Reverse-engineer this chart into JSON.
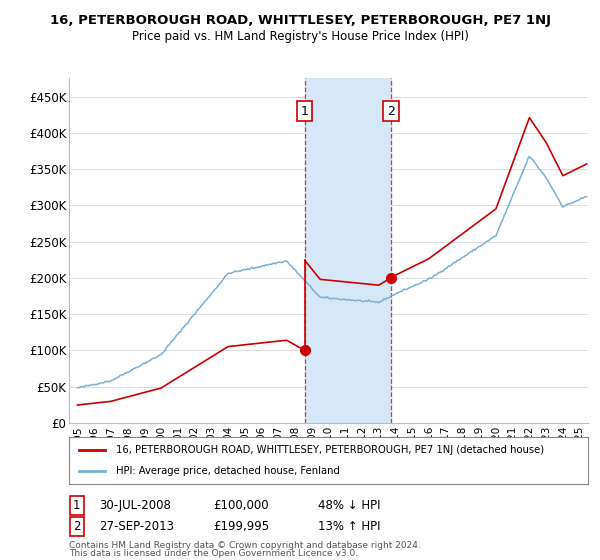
{
  "title": "16, PETERBOROUGH ROAD, WHITTLESEY, PETERBOROUGH, PE7 1NJ",
  "subtitle": "Price paid vs. HM Land Registry's House Price Index (HPI)",
  "ylim": [
    0,
    475000
  ],
  "yticks": [
    0,
    50000,
    100000,
    150000,
    200000,
    250000,
    300000,
    350000,
    400000,
    450000
  ],
  "ytick_labels": [
    "£0",
    "£50K",
    "£100K",
    "£150K",
    "£200K",
    "£250K",
    "£300K",
    "£350K",
    "£400K",
    "£450K"
  ],
  "xlim_start": 1994.5,
  "xlim_end": 2025.5,
  "sale1_date": 2008.58,
  "sale1_price": 100000,
  "sale2_date": 2013.74,
  "sale2_price": 199995,
  "red_line_color": "#cc0000",
  "blue_line_color": "#7bafd4",
  "shade_color": "#d6e8f7",
  "marker_color": "#cc0000",
  "legend_line1": "16, PETERBOROUGH ROAD, WHITTLESEY, PETERBOROUGH, PE7 1NJ (detached house)",
  "legend_line2": "HPI: Average price, detached house, Fenland",
  "sale1_row": "30-JUL-2008",
  "sale1_price_str": "£100,000",
  "sale1_hpi": "48% ↓ HPI",
  "sale2_row": "27-SEP-2013",
  "sale2_price_str": "£199,995",
  "sale2_hpi": "13% ↑ HPI",
  "footer1": "Contains HM Land Registry data © Crown copyright and database right 2024.",
  "footer2": "This data is licensed under the Open Government Licence v3.0.",
  "background_color": "#ffffff",
  "grid_color": "#dddddd"
}
